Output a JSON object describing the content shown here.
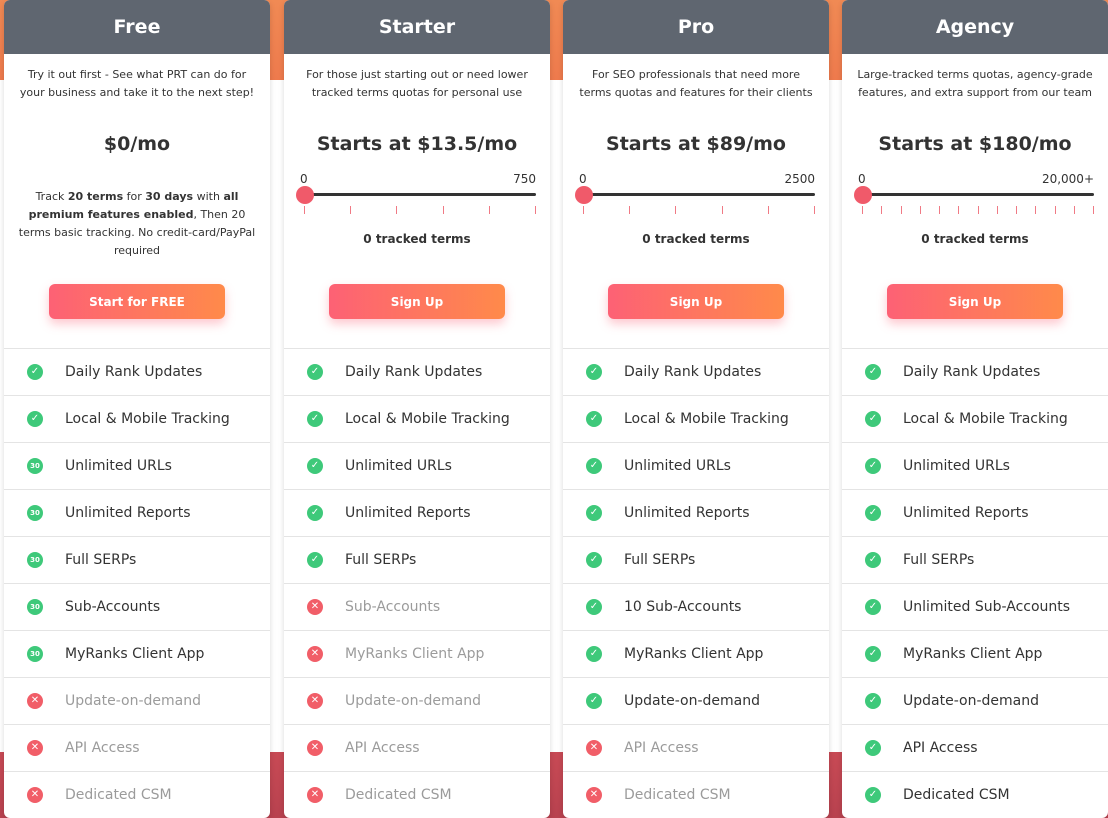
{
  "plans": [
    {
      "name": "Free",
      "description": "Try it out first - See what PRT can do for your business and take it to the next step!",
      "price": "$0/mo",
      "note": {
        "p1": "Track ",
        "b1": "20 terms",
        "p2": " for ",
        "b2": "30 days",
        "p3": " with ",
        "b3": "all premium features enabled",
        "p4": ", Then 20 terms basic tracking. No credit-card/PayPal required"
      },
      "cta": "Start for FREE",
      "features": [
        {
          "label": "Daily Rank Updates",
          "status": "check"
        },
        {
          "label": "Local & Mobile Tracking",
          "status": "check"
        },
        {
          "label": "Unlimited URLs",
          "status": "trial",
          "badge": "30"
        },
        {
          "label": "Unlimited Reports",
          "status": "trial",
          "badge": "30"
        },
        {
          "label": "Full SERPs",
          "status": "trial",
          "badge": "30"
        },
        {
          "label": "Sub-Accounts",
          "status": "trial",
          "badge": "30"
        },
        {
          "label": "MyRanks Client App",
          "status": "trial",
          "badge": "30"
        },
        {
          "label": "Update-on-demand",
          "status": "cross"
        },
        {
          "label": "API Access",
          "status": "cross"
        },
        {
          "label": "Dedicated CSM",
          "status": "cross"
        }
      ]
    },
    {
      "name": "Starter",
      "description": "For those just starting out or need lower tracked terms quotas for personal use",
      "price": "Starts at $13.5/mo",
      "slider": {
        "min": "0",
        "max": "750",
        "value": 0,
        "tracked": "0 tracked terms",
        "ticks": 6
      },
      "cta": "Sign Up",
      "features": [
        {
          "label": "Daily Rank Updates",
          "status": "check"
        },
        {
          "label": "Local & Mobile Tracking",
          "status": "check"
        },
        {
          "label": "Unlimited URLs",
          "status": "check"
        },
        {
          "label": "Unlimited Reports",
          "status": "check"
        },
        {
          "label": "Full SERPs",
          "status": "check"
        },
        {
          "label": "Sub-Accounts",
          "status": "cross"
        },
        {
          "label": "MyRanks Client App",
          "status": "cross"
        },
        {
          "label": "Update-on-demand",
          "status": "cross"
        },
        {
          "label": "API Access",
          "status": "cross"
        },
        {
          "label": "Dedicated CSM",
          "status": "cross"
        }
      ]
    },
    {
      "name": "Pro",
      "description": "For SEO professionals that need more terms quotas and features for their clients",
      "price": "Starts at $89/mo",
      "slider": {
        "min": "0",
        "max": "2500",
        "value": 0,
        "tracked": "0 tracked terms",
        "ticks": 6
      },
      "cta": "Sign Up",
      "features": [
        {
          "label": "Daily Rank Updates",
          "status": "check"
        },
        {
          "label": "Local & Mobile Tracking",
          "status": "check"
        },
        {
          "label": "Unlimited URLs",
          "status": "check"
        },
        {
          "label": "Unlimited Reports",
          "status": "check"
        },
        {
          "label": "Full SERPs",
          "status": "check"
        },
        {
          "label": "10 Sub-Accounts",
          "status": "check"
        },
        {
          "label": "MyRanks Client App",
          "status": "check"
        },
        {
          "label": "Update-on-demand",
          "status": "check"
        },
        {
          "label": "API Access",
          "status": "cross"
        },
        {
          "label": "Dedicated CSM",
          "status": "cross"
        }
      ]
    },
    {
      "name": "Agency",
      "description": "Large-tracked terms quotas, agency-grade features, and extra support from our team",
      "price": "Starts at $180/mo",
      "slider": {
        "min": "0",
        "max": "20,000+",
        "value": 0,
        "tracked": "0 tracked terms",
        "ticks": 13
      },
      "cta": "Sign Up",
      "features": [
        {
          "label": "Daily Rank Updates",
          "status": "check"
        },
        {
          "label": "Local & Mobile Tracking",
          "status": "check"
        },
        {
          "label": "Unlimited URLs",
          "status": "check"
        },
        {
          "label": "Unlimited Reports",
          "status": "check"
        },
        {
          "label": "Full SERPs",
          "status": "check"
        },
        {
          "label": "Unlimited Sub-Accounts",
          "status": "check"
        },
        {
          "label": "MyRanks Client App",
          "status": "check"
        },
        {
          "label": "Update-on-demand",
          "status": "check"
        },
        {
          "label": "API Access",
          "status": "check"
        },
        {
          "label": "Dedicated CSM",
          "status": "check"
        }
      ]
    }
  ],
  "icons": {
    "check": "check-circle-icon",
    "cross": "cross-circle-icon",
    "trial": "trial-30-days-icon"
  },
  "colors": {
    "header": "#5f6670",
    "accent_start": "#fd6175",
    "accent_end": "#ff8a4a",
    "check": "#3ec97a",
    "cross": "#f15e68"
  }
}
